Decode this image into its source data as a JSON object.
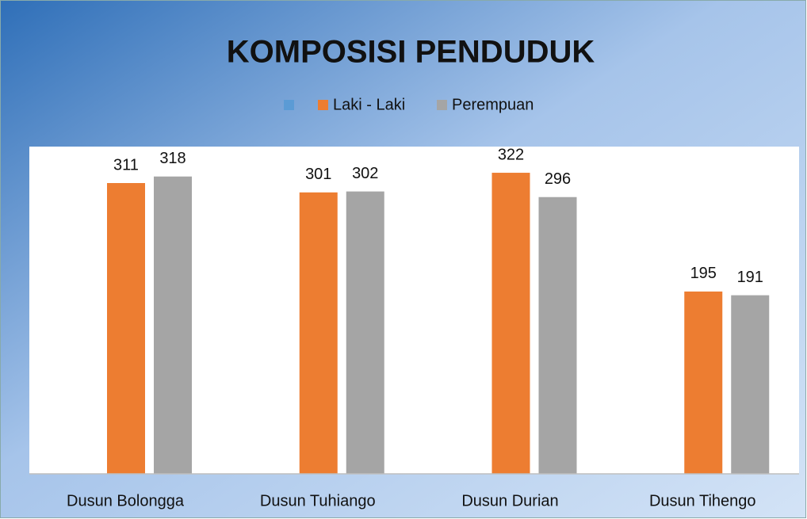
{
  "chart_data": {
    "type": "bar",
    "title": "KOMPOSISI PENDUDUK",
    "categories": [
      "Dusun Bolongga",
      "Dusun Tuhiango",
      "Dusun Durian",
      "Dusun Tihengo"
    ],
    "series": [
      {
        "name": "Laki - Laki",
        "color": "#ed7d31",
        "values": [
          311,
          301,
          322,
          195
        ]
      },
      {
        "name": "Perempuan",
        "color": "#a5a5a5",
        "values": [
          318,
          302,
          296,
          191
        ]
      }
    ],
    "ylim": [
      0,
      350
    ],
    "legend": "top"
  }
}
